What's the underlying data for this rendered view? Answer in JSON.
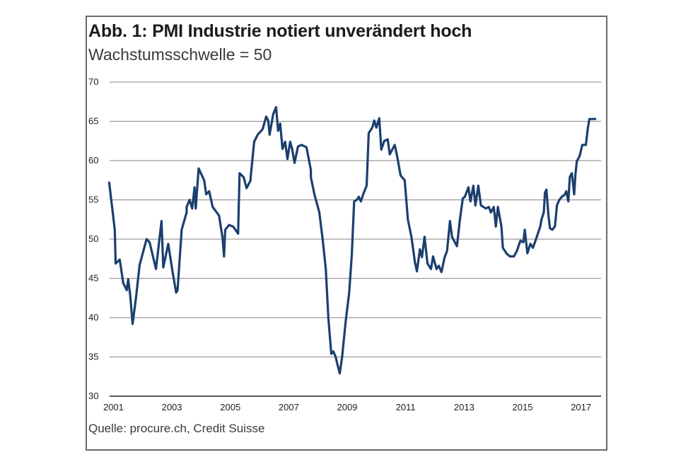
{
  "chart_data": {
    "type": "line",
    "title": "Abb. 1: PMI Industrie notiert unverändert hoch",
    "subtitle": "Wachstumsschwelle = 50",
    "source": "Quelle: procure.ch, Credit Suisse",
    "xlabel": "",
    "ylabel": "",
    "xlim": [
      2000.7,
      2018.0
    ],
    "ylim": [
      30,
      70
    ],
    "y_ticks": [
      30,
      35,
      40,
      45,
      50,
      55,
      60,
      65,
      70
    ],
    "x_ticks": [
      2001,
      2003,
      2005,
      2007,
      2009,
      2011,
      2013,
      2015,
      2017
    ],
    "grid": "horizontal",
    "legend": "none",
    "line_color": "#1b3f6e",
    "series": [
      {
        "name": "PMI Industrie",
        "points": [
          [
            2001.17,
            57.2
          ],
          [
            2001.36,
            51.2
          ],
          [
            2001.39,
            46.9
          ],
          [
            2001.53,
            47.4
          ],
          [
            2001.65,
            44.4
          ],
          [
            2001.77,
            43.5
          ],
          [
            2001.82,
            44.9
          ],
          [
            2001.89,
            42.8
          ],
          [
            2001.97,
            39.2
          ],
          [
            2002.09,
            42.6
          ],
          [
            2002.21,
            46.7
          ],
          [
            2002.45,
            50.0
          ],
          [
            2002.55,
            49.6
          ],
          [
            2002.77,
            46.2
          ],
          [
            2002.96,
            52.3
          ],
          [
            2003.02,
            46.4
          ],
          [
            2003.19,
            49.4
          ],
          [
            2003.34,
            45.8
          ],
          [
            2003.46,
            43.2
          ],
          [
            2003.51,
            43.5
          ],
          [
            2003.65,
            51.2
          ],
          [
            2003.82,
            53.4
          ],
          [
            2003.82,
            54.1
          ],
          [
            2003.92,
            55.0
          ],
          [
            2004.01,
            53.9
          ],
          [
            2004.09,
            56.6
          ],
          [
            2004.13,
            53.9
          ],
          [
            2004.23,
            59.0
          ],
          [
            2004.42,
            57.5
          ],
          [
            2004.49,
            55.7
          ],
          [
            2004.59,
            56.1
          ],
          [
            2004.71,
            54.1
          ],
          [
            2004.93,
            53.0
          ],
          [
            2005.05,
            50.1
          ],
          [
            2005.1,
            47.8
          ],
          [
            2005.14,
            51.2
          ],
          [
            2005.27,
            51.8
          ],
          [
            2005.41,
            51.6
          ],
          [
            2005.58,
            50.7
          ],
          [
            2005.63,
            58.4
          ],
          [
            2005.77,
            57.9
          ],
          [
            2005.87,
            56.5
          ],
          [
            2006.01,
            57.5
          ],
          [
            2006.01,
            57.9
          ],
          [
            2006.13,
            62.4
          ],
          [
            2006.25,
            63.3
          ],
          [
            2006.42,
            64.0
          ],
          [
            2006.54,
            65.6
          ],
          [
            2006.61,
            65.1
          ],
          [
            2006.66,
            63.3
          ],
          [
            2006.78,
            65.9
          ],
          [
            2006.88,
            66.8
          ],
          [
            2006.95,
            63.8
          ],
          [
            2007.02,
            64.7
          ],
          [
            2007.1,
            61.5
          ],
          [
            2007.19,
            62.4
          ],
          [
            2007.27,
            60.2
          ],
          [
            2007.36,
            62.4
          ],
          [
            2007.43,
            61.5
          ],
          [
            2007.51,
            59.7
          ],
          [
            2007.63,
            61.8
          ],
          [
            2007.75,
            62.0
          ],
          [
            2007.92,
            61.7
          ],
          [
            2008.07,
            58.8
          ],
          [
            2008.07,
            57.9
          ],
          [
            2008.19,
            55.7
          ],
          [
            2008.36,
            53.4
          ],
          [
            2008.48,
            49.8
          ],
          [
            2008.58,
            46.2
          ],
          [
            2008.67,
            39.9
          ],
          [
            2008.77,
            35.4
          ],
          [
            2008.84,
            35.7
          ],
          [
            2008.92,
            35.0
          ],
          [
            2008.99,
            33.9
          ],
          [
            2009.06,
            32.9
          ],
          [
            2009.14,
            35.0
          ],
          [
            2009.26,
            39.5
          ],
          [
            2009.38,
            43.1
          ],
          [
            2009.47,
            48.0
          ],
          [
            2009.55,
            54.8
          ],
          [
            2009.64,
            55.0
          ],
          [
            2009.71,
            55.4
          ],
          [
            2009.78,
            54.8
          ],
          [
            2009.88,
            55.9
          ],
          [
            2009.98,
            56.8
          ],
          [
            2010.05,
            63.5
          ],
          [
            2010.17,
            64.2
          ],
          [
            2010.24,
            65.1
          ],
          [
            2010.31,
            64.2
          ],
          [
            2010.41,
            65.4
          ],
          [
            2010.48,
            61.4
          ],
          [
            2010.58,
            62.5
          ],
          [
            2010.7,
            62.7
          ],
          [
            2010.77,
            60.8
          ],
          [
            2010.94,
            62.0
          ],
          [
            2011.02,
            60.6
          ],
          [
            2011.14,
            58.1
          ],
          [
            2011.28,
            57.5
          ],
          [
            2011.39,
            52.5
          ],
          [
            2011.51,
            50.3
          ],
          [
            2011.63,
            47.1
          ],
          [
            2011.7,
            45.9
          ],
          [
            2011.8,
            48.7
          ],
          [
            2011.87,
            47.7
          ],
          [
            2011.96,
            50.3
          ],
          [
            2012.06,
            46.9
          ],
          [
            2012.18,
            46.2
          ],
          [
            2012.25,
            47.8
          ],
          [
            2012.37,
            46.2
          ],
          [
            2012.45,
            46.6
          ],
          [
            2012.54,
            45.8
          ],
          [
            2012.64,
            47.6
          ],
          [
            2012.73,
            48.5
          ],
          [
            2012.83,
            52.3
          ],
          [
            2012.9,
            50.3
          ],
          [
            2013.07,
            49.1
          ],
          [
            2013.17,
            52.5
          ],
          [
            2013.27,
            55.2
          ],
          [
            2013.34,
            55.4
          ],
          [
            2013.46,
            56.6
          ],
          [
            2013.53,
            54.8
          ],
          [
            2013.63,
            56.8
          ],
          [
            2013.7,
            54.3
          ],
          [
            2013.8,
            56.8
          ],
          [
            2013.89,
            54.3
          ],
          [
            2014.06,
            53.9
          ],
          [
            2014.16,
            54.1
          ],
          [
            2014.23,
            53.4
          ],
          [
            2014.33,
            54.1
          ],
          [
            2014.4,
            51.6
          ],
          [
            2014.47,
            54.1
          ],
          [
            2014.59,
            51.6
          ],
          [
            2014.64,
            48.9
          ],
          [
            2014.76,
            48.2
          ],
          [
            2014.88,
            47.8
          ],
          [
            2015.02,
            47.8
          ],
          [
            2015.12,
            48.5
          ],
          [
            2015.24,
            49.8
          ],
          [
            2015.34,
            49.6
          ],
          [
            2015.39,
            51.2
          ],
          [
            2015.43,
            49.8
          ],
          [
            2015.48,
            48.2
          ],
          [
            2015.58,
            49.4
          ],
          [
            2015.67,
            48.9
          ],
          [
            2015.8,
            50.3
          ],
          [
            2015.92,
            51.6
          ],
          [
            2015.96,
            52.5
          ],
          [
            2016.04,
            53.4
          ],
          [
            2016.08,
            55.9
          ],
          [
            2016.13,
            56.3
          ],
          [
            2016.2,
            53.0
          ],
          [
            2016.25,
            51.4
          ],
          [
            2016.33,
            51.2
          ],
          [
            2016.42,
            51.6
          ],
          [
            2016.49,
            54.3
          ],
          [
            2016.57,
            55.0
          ],
          [
            2016.66,
            55.4
          ],
          [
            2016.76,
            55.7
          ],
          [
            2016.81,
            56.1
          ],
          [
            2016.88,
            54.8
          ],
          [
            2016.93,
            57.9
          ],
          [
            2017.0,
            58.4
          ],
          [
            2017.08,
            55.7
          ],
          [
            2017.12,
            58.1
          ],
          [
            2017.17,
            59.9
          ],
          [
            2017.27,
            60.6
          ],
          [
            2017.36,
            62.0
          ],
          [
            2017.48,
            62.0
          ],
          [
            2017.55,
            64.2
          ],
          [
            2017.6,
            65.3
          ],
          [
            2017.72,
            65.3
          ],
          [
            2017.8,
            65.3
          ]
        ]
      }
    ]
  }
}
